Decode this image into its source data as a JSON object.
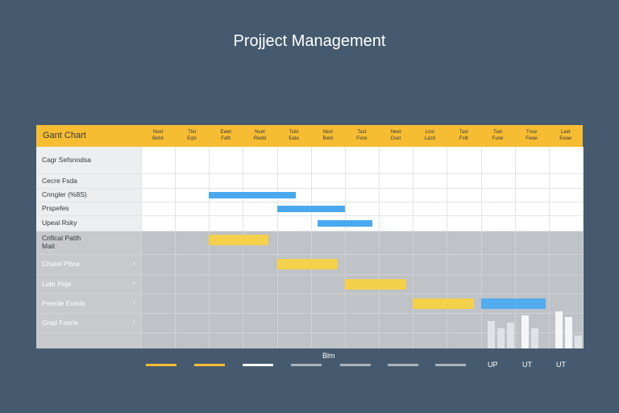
{
  "app": {
    "title": "Projject Management"
  },
  "chart_data": {
    "type": "gantt",
    "title": "Gant Chart",
    "columns": [
      [
        "Nset",
        "Betst"
      ],
      [
        "Tlet",
        "Eqtx"
      ],
      [
        "Ewet",
        "Fath"
      ],
      [
        "Nuet",
        "Rwdd"
      ],
      [
        "Tslst",
        "Eata"
      ],
      [
        "Nest",
        "Betd"
      ],
      [
        "Tast",
        "Fsne"
      ],
      [
        "Neet",
        "Dset"
      ],
      [
        "Lnst",
        "Lazd"
      ],
      [
        "Tast",
        "Fslit"
      ],
      [
        "Tset",
        "Fune"
      ],
      [
        "Tnse",
        "Fwae"
      ],
      [
        "Laet",
        "Ewae"
      ]
    ],
    "rows": [
      {
        "label": "Cagr Sefsnodsa"
      },
      {
        "label": "Cecre Fsda"
      },
      {
        "label": "Cnngler (%8S)"
      },
      {
        "label": "Prspefes"
      },
      {
        "label": "Upeal Rsky"
      },
      {
        "label": "Crifical Patth\nMait",
        "expandable": false
      },
      {
        "label": "Chatel Plbra",
        "expandable": true
      },
      {
        "label": "Lebr Peje",
        "expandable": true
      },
      {
        "label": "Peerde Eonds",
        "expandable": true
      },
      {
        "label": "Grad Foerle",
        "expandable": true
      }
    ],
    "tasks": [
      {
        "row": 2,
        "start": 2.0,
        "end": 4.55,
        "color": "#4aa8ee"
      },
      {
        "row": 3,
        "start": 4.0,
        "end": 6.0,
        "color": "#4aa8ee"
      },
      {
        "row": 4,
        "start": 5.2,
        "end": 6.8,
        "color": "#4aa8ee"
      },
      {
        "row": 5,
        "start": 2.0,
        "end": 3.75,
        "color": "#f5d04a"
      },
      {
        "row": 6,
        "start": 4.0,
        "end": 5.8,
        "color": "#f5d04a"
      },
      {
        "row": 7,
        "start": 6.0,
        "end": 7.8,
        "color": "#f5d04a"
      },
      {
        "row": 8,
        "start": 8.0,
        "end": 9.8,
        "color": "#f5d04a"
      },
      {
        "row": 8,
        "start": 10.0,
        "end": 11.9,
        "color": "#52acee"
      }
    ],
    "mini_bars": [
      {
        "col": 10,
        "value": 0.75
      },
      {
        "col": 10,
        "value": 0.55
      },
      {
        "col": 10,
        "value": 0.7
      },
      {
        "col": 11,
        "value": 0.9
      },
      {
        "col": 11,
        "value": 0.55
      },
      {
        "col": 12,
        "value": 1.0
      },
      {
        "col": 12,
        "value": 0.85
      },
      {
        "col": 12,
        "value": 0.35
      }
    ]
  },
  "footer": {
    "label": "Blm",
    "legend": [
      {
        "color": "#f6bd33",
        "text": ""
      },
      {
        "color": "#f6bd33",
        "text": ""
      },
      {
        "color": "#ffffff",
        "text": ""
      },
      {
        "color": "#a9b2bb",
        "text": ""
      },
      {
        "color": "#a9b2bb",
        "text": ""
      },
      {
        "color": "#a9b2bb",
        "text": ""
      },
      {
        "color": "#a9b2bb",
        "text": ""
      }
    ],
    "legend_texts": [
      "UP",
      "UT",
      "UT"
    ]
  }
}
